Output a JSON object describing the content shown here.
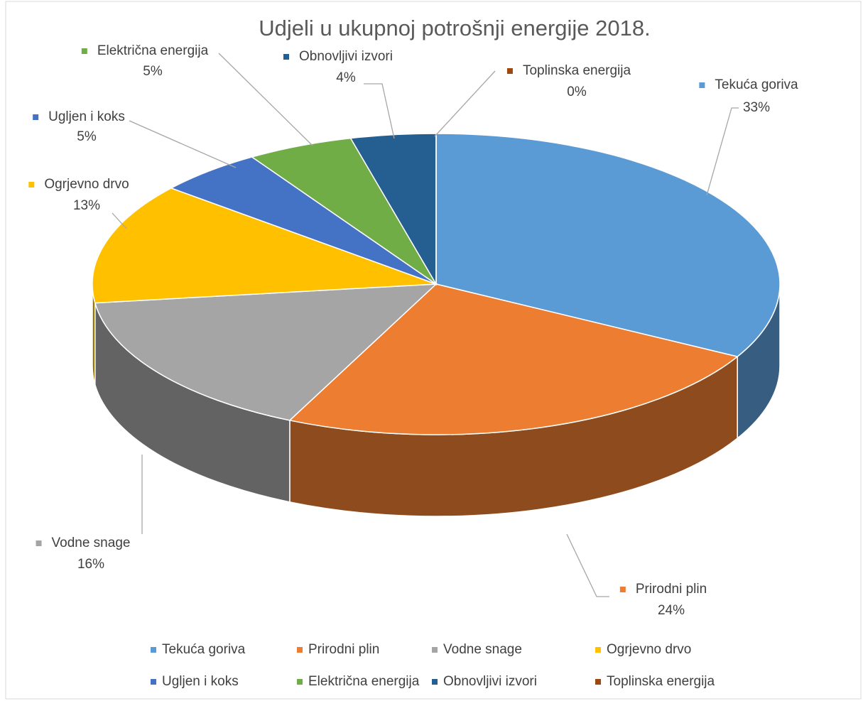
{
  "chart_data": {
    "type": "pie",
    "title": "Udjeli u ukupnoj potrošnji energije 2018.",
    "categories": [
      "Tekuća goriva",
      "Prirodni plin",
      "Vodne snage",
      "Ogrjevno drvo",
      "Ugljen i koks",
      "Električna energija",
      "Obnovljivi izvori",
      "Toplinska energija"
    ],
    "values": [
      33,
      24,
      16,
      13,
      5,
      5,
      4,
      0
    ],
    "value_labels": [
      "33%",
      "24%",
      "16%",
      "13%",
      "5%",
      "5%",
      "4%",
      "0%"
    ],
    "colors": [
      "#5b9bd5",
      "#ed7d31",
      "#a5a5a5",
      "#ffc000",
      "#4472c4",
      "#70ad47",
      "#255e91",
      "#9e480e"
    ],
    "legend": "bottom"
  }
}
